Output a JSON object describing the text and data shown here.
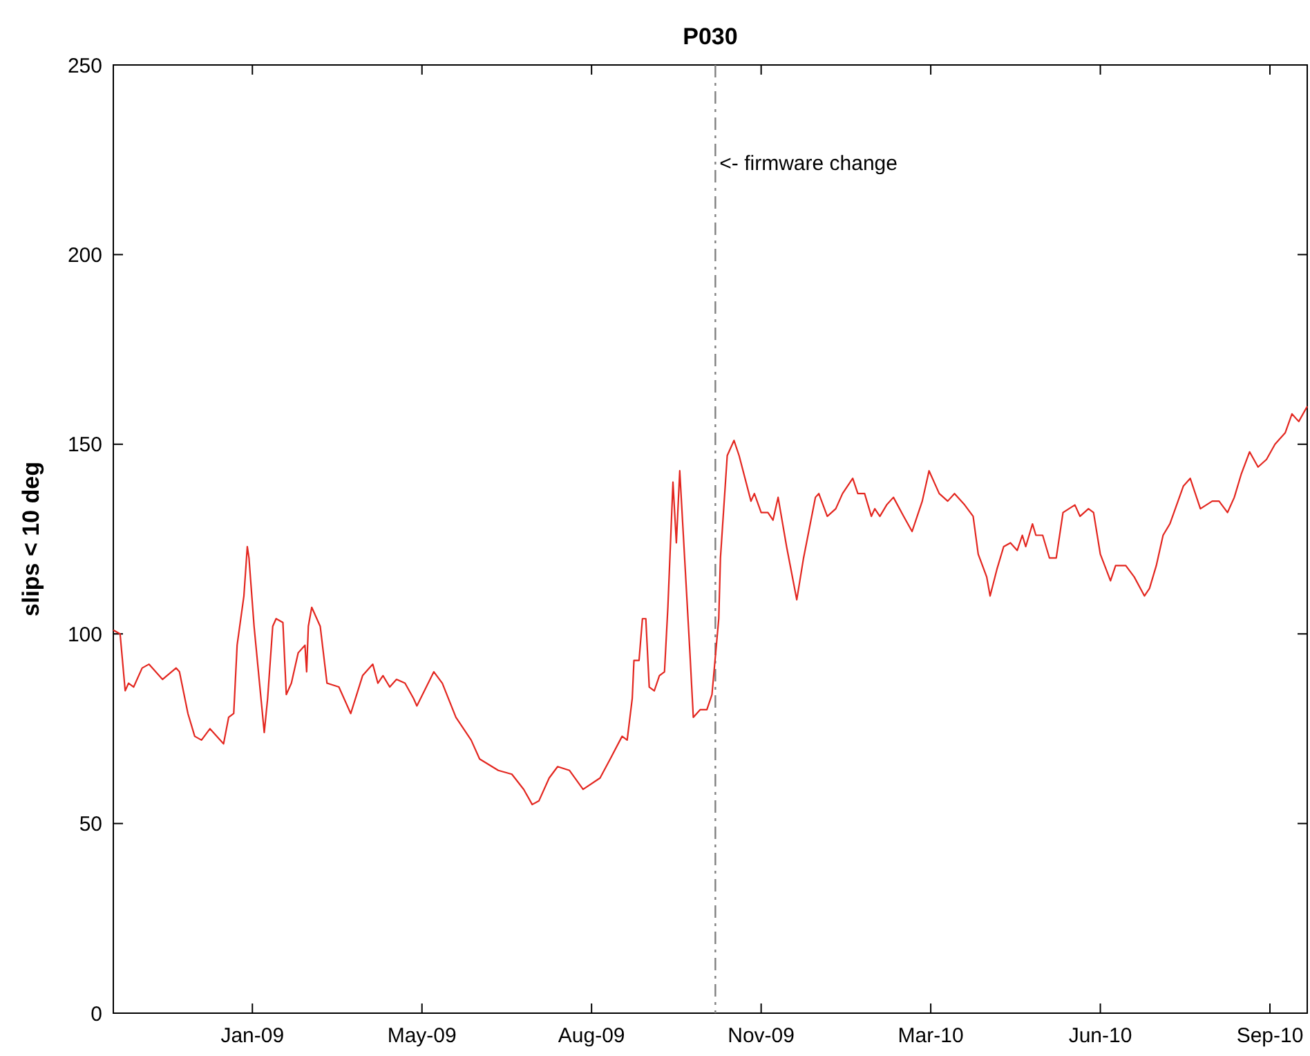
{
  "chart_data": {
    "type": "line",
    "title": "P030",
    "ylabel": "slips < 10 deg",
    "xlim": [
      "2008-11-04",
      "2010-10-09"
    ],
    "xticks": [
      {
        "value": "2009-01-25",
        "label": "Jan-09"
      },
      {
        "value": "2009-05-05",
        "label": "May-09"
      },
      {
        "value": "2009-08-13",
        "label": "Aug-09"
      },
      {
        "value": "2009-11-21",
        "label": "Nov-09"
      },
      {
        "value": "2010-03-01",
        "label": "Mar-10"
      },
      {
        "value": "2010-06-09",
        "label": "Jun-10"
      },
      {
        "value": "2010-09-17",
        "label": "Sep-10"
      }
    ],
    "ylim": [
      0,
      250
    ],
    "yticks": [
      0,
      50,
      100,
      150,
      200,
      250
    ],
    "x": [
      "2008-11-04",
      "2008-11-08",
      "2008-11-11",
      "2008-11-13",
      "2008-11-16",
      "2008-11-21",
      "2008-11-25",
      "2008-12-03",
      "2008-12-11",
      "2008-12-13",
      "2008-12-18",
      "2008-12-22",
      "2008-12-26",
      "2008-12-31",
      "2009-01-08",
      "2009-01-11",
      "2009-01-14",
      "2009-01-16",
      "2009-01-20",
      "2009-01-22",
      "2009-01-23",
      "2009-01-26",
      "2009-02-01",
      "2009-02-03",
      "2009-02-06",
      "2009-02-08",
      "2009-02-12",
      "2009-02-14",
      "2009-02-17",
      "2009-02-21",
      "2009-02-25",
      "2009-02-26",
      "2009-02-27",
      "2009-03-01",
      "2009-03-06",
      "2009-03-10",
      "2009-03-17",
      "2009-03-24",
      "2009-03-31",
      "2009-04-06",
      "2009-04-09",
      "2009-04-12",
      "2009-04-16",
      "2009-04-20",
      "2009-04-25",
      "2009-04-30",
      "2009-05-02",
      "2009-05-12",
      "2009-05-17",
      "2009-05-25",
      "2009-06-03",
      "2009-06-08",
      "2009-06-19",
      "2009-06-27",
      "2009-07-04",
      "2009-07-09",
      "2009-07-13",
      "2009-07-19",
      "2009-07-24",
      "2009-07-31",
      "2009-08-08",
      "2009-08-18",
      "2009-08-24",
      "2009-08-31",
      "2009-09-03",
      "2009-09-06",
      "2009-09-07",
      "2009-09-10",
      "2009-09-12",
      "2009-09-14",
      "2009-09-16",
      "2009-09-19",
      "2009-09-22",
      "2009-09-25",
      "2009-09-27",
      "2009-09-30",
      "2009-10-02",
      "2009-10-04",
      "2009-10-10",
      "2009-10-12",
      "2009-10-16",
      "2009-10-20",
      "2009-10-23",
      "2009-10-27",
      "2009-10-28",
      "2009-11-01",
      "2009-11-05",
      "2009-11-08",
      "2009-11-15",
      "2009-11-17",
      "2009-11-21",
      "2009-11-25",
      "2009-11-28",
      "2009-12-01",
      "2009-12-06",
      "2009-12-12",
      "2009-12-16",
      "2009-12-23",
      "2009-12-25",
      "2009-12-30",
      "2010-01-04",
      "2010-01-08",
      "2010-01-11",
      "2010-01-14",
      "2010-01-17",
      "2010-01-21",
      "2010-01-25",
      "2010-01-27",
      "2010-01-30",
      "2010-02-03",
      "2010-02-07",
      "2010-02-13",
      "2010-02-18",
      "2010-02-24",
      "2010-02-28",
      "2010-03-06",
      "2010-03-11",
      "2010-03-15",
      "2010-03-21",
      "2010-03-26",
      "2010-03-29",
      "2010-04-03",
      "2010-04-05",
      "2010-04-09",
      "2010-04-13",
      "2010-04-17",
      "2010-04-21",
      "2010-04-24",
      "2010-04-26",
      "2010-04-30",
      "2010-05-02",
      "2010-05-06",
      "2010-05-10",
      "2010-05-14",
      "2010-05-18",
      "2010-05-25",
      "2010-05-28",
      "2010-06-02",
      "2010-06-05",
      "2010-06-09",
      "2010-06-15",
      "2010-06-18",
      "2010-06-24",
      "2010-06-29",
      "2010-07-05",
      "2010-07-08",
      "2010-07-12",
      "2010-07-16",
      "2010-07-20",
      "2010-07-28",
      "2010-08-01",
      "2010-08-07",
      "2010-08-14",
      "2010-08-18",
      "2010-08-23",
      "2010-08-27",
      "2010-08-31",
      "2010-09-05",
      "2010-09-10",
      "2010-09-15",
      "2010-09-20",
      "2010-09-26",
      "2010-09-30",
      "2010-10-04",
      "2010-10-09"
    ],
    "series": [
      {
        "color": "#e3261f",
        "values": [
          101,
          100,
          85,
          87,
          86,
          91,
          92,
          88,
          91,
          90,
          79,
          73,
          72,
          75,
          71,
          78,
          79,
          97,
          110,
          123,
          120,
          102,
          74,
          83,
          102,
          104,
          103,
          84,
          87,
          95,
          97,
          90,
          102,
          107,
          102,
          87,
          86,
          79,
          89,
          92,
          87,
          89,
          86,
          88,
          87,
          83,
          81,
          90,
          87,
          78,
          72,
          67,
          64,
          63,
          59,
          55,
          56,
          62,
          65,
          64,
          59,
          62,
          67,
          73,
          72,
          83,
          93,
          93,
          104,
          104,
          86,
          85,
          89,
          90,
          107,
          140,
          124,
          143,
          95,
          78,
          80,
          80,
          84,
          104,
          120,
          147,
          151,
          147,
          135,
          137,
          132,
          132,
          130,
          136,
          123,
          109,
          120,
          136,
          137,
          131,
          133,
          137,
          139,
          141,
          137,
          137,
          131,
          133,
          131,
          134,
          136,
          131,
          127,
          135,
          143,
          137,
          135,
          137,
          134,
          131,
          121,
          115,
          110,
          117,
          123,
          124,
          122,
          126,
          123,
          129,
          126,
          126,
          120,
          120,
          132,
          134,
          131,
          133,
          132,
          121,
          114,
          118,
          118,
          115,
          110,
          112,
          118,
          126,
          129,
          139,
          141,
          133,
          135,
          135,
          132,
          136,
          142,
          148,
          144,
          146,
          150,
          153,
          158,
          156,
          160
        ]
      }
    ],
    "ref_lines": [
      {
        "axis": "x",
        "value": "2009-10-25",
        "label": "<- firmware change",
        "color": "#808080",
        "line_style": "dashed"
      }
    ]
  }
}
